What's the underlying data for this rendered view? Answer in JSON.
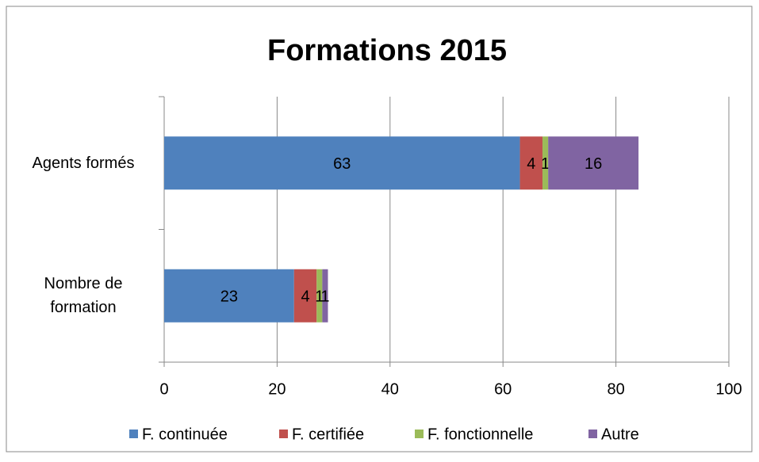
{
  "chart_data": {
    "type": "stacked_barh",
    "title": "Formations 2015",
    "categories": [
      "Agents formés",
      "Nombre de formation"
    ],
    "series": [
      {
        "name": "F. continuée",
        "color": "#4f81bd",
        "values": [
          63,
          23
        ]
      },
      {
        "name": "F. certifiée",
        "color": "#c0504d",
        "values": [
          4,
          4
        ]
      },
      {
        "name": "F. fonctionnelle",
        "color": "#9bbb59",
        "values": [
          1,
          1
        ]
      },
      {
        "name": "Autre",
        "color": "#8064a2",
        "values": [
          16,
          1
        ]
      }
    ],
    "xlim": [
      0,
      100
    ],
    "xticks": [
      0,
      20,
      40,
      60,
      80,
      100
    ],
    "grid": true,
    "legend": "bottom"
  }
}
